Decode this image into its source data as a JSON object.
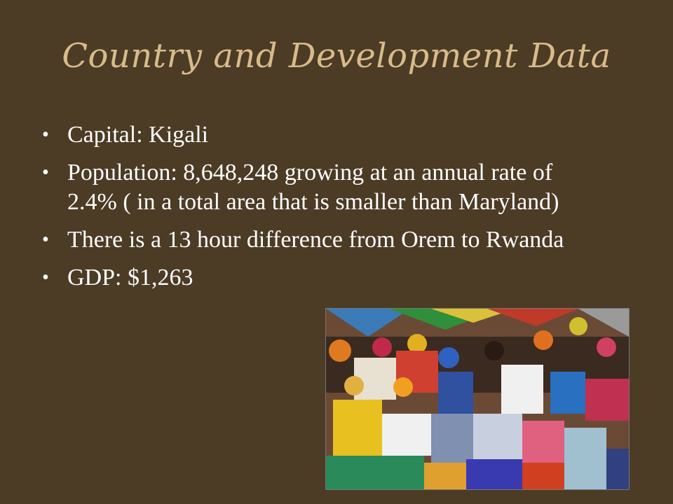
{
  "title": "Country and Development Data",
  "bullets": [
    "Capital: Kigali",
    "Population: 8,648,248  growing at an annual rate of 2.4% ( in a total area that is smaller than Maryland)",
    "There is a 13 hour difference from Orem to Rwanda",
    "GDP: $1,263"
  ]
}
